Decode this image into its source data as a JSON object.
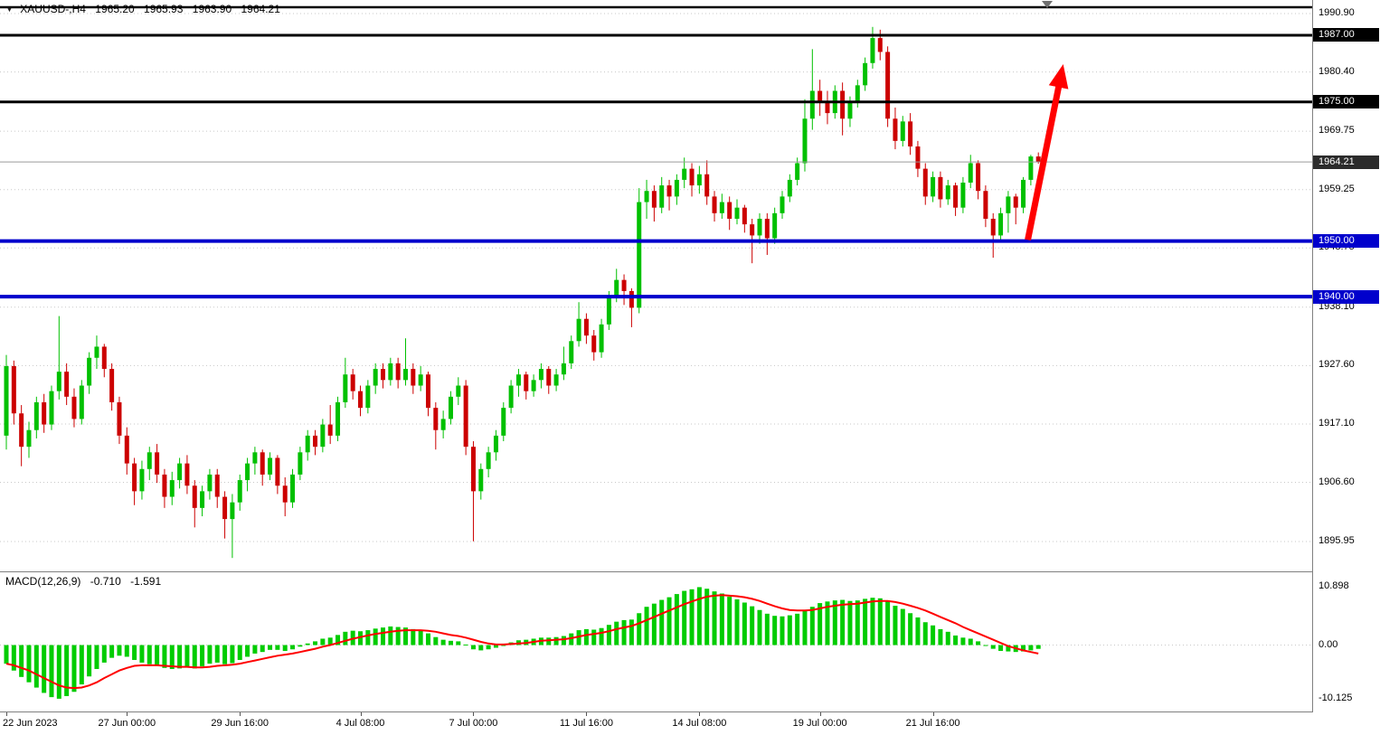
{
  "header": {
    "symbol_period": "XAUUSD-,H4",
    "open": "1965.20",
    "high": "1965.93",
    "low": "1963.90",
    "close": "1964.21"
  },
  "macd_header": {
    "label": "MACD(12,26,9)",
    "value_main": "-0.710",
    "value_signal": "-1.591"
  },
  "colors": {
    "background": "#FFFFFF",
    "text": "#000000",
    "bull": "#00C000",
    "bear": "#CC0000",
    "macd_hist": "#00CC00",
    "macd_signal": "#FF0000",
    "grid": "#C8C8C8",
    "frame": "#808080",
    "arrow": "#FF0000"
  },
  "chart_data": {
    "type": "candlestick",
    "symbol": "XAUUSD-",
    "timeframe": "H4",
    "price_range": [
      1890.43,
      1993.34
    ],
    "price_ticks": [
      "1990.90",
      "1980.40",
      "1969.75",
      "1959.25",
      "1948.75",
      "1938.10",
      "1927.60",
      "1917.10",
      "1906.60",
      "1895.95"
    ],
    "levels": [
      {
        "price": "1987.00",
        "color": "#000000",
        "width": 3
      },
      {
        "price": "1975.00",
        "color": "#000000",
        "width": 3
      },
      {
        "price": "1950.00",
        "color": "#0000CC",
        "width": 4
      },
      {
        "price": "1940.00",
        "color": "#0000CC",
        "width": 4
      }
    ],
    "current_price": {
      "price": "1964.21",
      "line_color": "#9A9A9A",
      "badge_bg": "#2B2B2B"
    },
    "arrow": {
      "from": {
        "index": 135.6,
        "price": 1950.2
      },
      "to": {
        "index": 140.3,
        "price": 1981.8
      },
      "color": "#FF0000"
    },
    "time_ticks": [
      {
        "index": 0,
        "label": "22 Jun 2023"
      },
      {
        "index": 16,
        "label": "27 Jun 00:00"
      },
      {
        "index": 31,
        "label": "29 Jun 16:00"
      },
      {
        "index": 47,
        "label": "4 Jul 08:00"
      },
      {
        "index": 62,
        "label": "7 Jul 00:00"
      },
      {
        "index": 77,
        "label": "11 Jul 16:00"
      },
      {
        "index": 92,
        "label": "14 Jul 08:00"
      },
      {
        "index": 108,
        "label": "19 Jul 00:00"
      },
      {
        "index": 123,
        "label": "21 Jul 16:00"
      }
    ],
    "ohlc_format": [
      "open",
      "high",
      "low",
      "close"
    ],
    "candles": [
      [
        1915.0,
        1929.5,
        1912.5,
        1927.5
      ],
      [
        1927.5,
        1928.5,
        1917.0,
        1919.0
      ],
      [
        1919.0,
        1920.5,
        1909.5,
        1913.0
      ],
      [
        1913.0,
        1917.5,
        1911.0,
        1916.0
      ],
      [
        1916.0,
        1922.0,
        1914.5,
        1921.0
      ],
      [
        1921.0,
        1922.5,
        1915.5,
        1917.0
      ],
      [
        1917.0,
        1924.0,
        1916.0,
        1923.0
      ],
      [
        1923.0,
        1936.5,
        1921.5,
        1926.5
      ],
      [
        1926.5,
        1928.0,
        1920.5,
        1922.0
      ],
      [
        1922.0,
        1923.5,
        1916.5,
        1918.0
      ],
      [
        1918.0,
        1925.0,
        1917.0,
        1924.0
      ],
      [
        1924.0,
        1930.0,
        1922.5,
        1929.0
      ],
      [
        1929.0,
        1933.0,
        1927.0,
        1931.0
      ],
      [
        1931.0,
        1931.5,
        1925.5,
        1927.0
      ],
      [
        1927.0,
        1928.0,
        1919.5,
        1921.0
      ],
      [
        1921.0,
        1922.0,
        1913.5,
        1915.0
      ],
      [
        1915.0,
        1916.5,
        1908.0,
        1910.0
      ],
      [
        1910.0,
        1911.0,
        1902.5,
        1905.0
      ],
      [
        1905.0,
        1910.5,
        1903.5,
        1909.0
      ],
      [
        1909.0,
        1913.0,
        1907.0,
        1912.0
      ],
      [
        1912.0,
        1913.5,
        1906.5,
        1908.0
      ],
      [
        1908.0,
        1909.0,
        1902.0,
        1904.0
      ],
      [
        1904.0,
        1908.5,
        1902.5,
        1907.0
      ],
      [
        1907.0,
        1911.0,
        1905.5,
        1910.0
      ],
      [
        1910.0,
        1911.5,
        1904.5,
        1906.0
      ],
      [
        1906.0,
        1907.0,
        1898.5,
        1902.0
      ],
      [
        1902.0,
        1906.0,
        1900.5,
        1905.0
      ],
      [
        1905.0,
        1909.0,
        1903.5,
        1908.0
      ],
      [
        1908.0,
        1909.0,
        1902.0,
        1904.0
      ],
      [
        1904.0,
        1905.0,
        1896.5,
        1900.0
      ],
      [
        1900.0,
        1904.5,
        1893.0,
        1903.0
      ],
      [
        1903.0,
        1908.0,
        1901.5,
        1907.0
      ],
      [
        1907.0,
        1911.0,
        1905.0,
        1910.0
      ],
      [
        1910.0,
        1913.0,
        1908.0,
        1912.0
      ],
      [
        1912.0,
        1912.5,
        1906.0,
        1908.0
      ],
      [
        1908.0,
        1912.0,
        1907.0,
        1911.0
      ],
      [
        1911.0,
        1911.5,
        1904.5,
        1906.0
      ],
      [
        1906.0,
        1907.5,
        1900.5,
        1903.0
      ],
      [
        1903.0,
        1909.0,
        1902.0,
        1908.0
      ],
      [
        1908.0,
        1913.0,
        1907.0,
        1912.0
      ],
      [
        1912.0,
        1916.0,
        1910.5,
        1915.0
      ],
      [
        1915.0,
        1916.0,
        1911.5,
        1913.0
      ],
      [
        1913.0,
        1918.0,
        1912.0,
        1917.0
      ],
      [
        1917.0,
        1920.5,
        1913.5,
        1915.0
      ],
      [
        1915.0,
        1922.0,
        1914.0,
        1921.0
      ],
      [
        1921.0,
        1929.0,
        1920.0,
        1926.0
      ],
      [
        1926.0,
        1927.0,
        1921.5,
        1923.0
      ],
      [
        1923.0,
        1924.0,
        1918.5,
        1920.0
      ],
      [
        1920.0,
        1925.0,
        1919.0,
        1924.0
      ],
      [
        1924.0,
        1928.0,
        1922.5,
        1927.0
      ],
      [
        1927.0,
        1928.0,
        1923.5,
        1925.0
      ],
      [
        1925.0,
        1929.0,
        1924.0,
        1928.0
      ],
      [
        1928.0,
        1929.0,
        1923.5,
        1925.0
      ],
      [
        1925.0,
        1932.5,
        1924.0,
        1927.0
      ],
      [
        1927.0,
        1928.0,
        1922.5,
        1924.0
      ],
      [
        1924.0,
        1927.5,
        1923.0,
        1926.0
      ],
      [
        1926.0,
        1926.5,
        1918.5,
        1920.0
      ],
      [
        1920.0,
        1921.0,
        1912.5,
        1916.0
      ],
      [
        1916.0,
        1919.5,
        1914.5,
        1918.0
      ],
      [
        1918.0,
        1923.0,
        1917.0,
        1922.0
      ],
      [
        1922.0,
        1925.5,
        1920.5,
        1924.0
      ],
      [
        1924.0,
        1925.0,
        1911.5,
        1913.0
      ],
      [
        1913.0,
        1914.0,
        1896.0,
        1905.0
      ],
      [
        1905.0,
        1910.0,
        1903.5,
        1909.0
      ],
      [
        1909.0,
        1913.0,
        1907.5,
        1912.0
      ],
      [
        1912.0,
        1916.0,
        1910.5,
        1915.0
      ],
      [
        1915.0,
        1921.0,
        1914.0,
        1920.0
      ],
      [
        1920.0,
        1925.0,
        1919.0,
        1924.0
      ],
      [
        1924.0,
        1927.0,
        1922.0,
        1926.0
      ],
      [
        1926.0,
        1926.5,
        1921.5,
        1923.0
      ],
      [
        1923.0,
        1926.0,
        1922.0,
        1925.0
      ],
      [
        1925.0,
        1928.0,
        1923.5,
        1927.0
      ],
      [
        1927.0,
        1927.5,
        1922.5,
        1924.0
      ],
      [
        1924.0,
        1927.0,
        1923.0,
        1926.0
      ],
      [
        1926.0,
        1931.0,
        1925.0,
        1928.0
      ],
      [
        1928.0,
        1933.0,
        1927.0,
        1932.0
      ],
      [
        1932.0,
        1939.0,
        1931.0,
        1936.0
      ],
      [
        1936.0,
        1937.0,
        1931.5,
        1933.0
      ],
      [
        1933.0,
        1934.0,
        1928.5,
        1930.0
      ],
      [
        1930.0,
        1936.0,
        1929.0,
        1935.0
      ],
      [
        1935.0,
        1941.0,
        1934.0,
        1940.0
      ],
      [
        1940.0,
        1945.0,
        1939.0,
        1943.0
      ],
      [
        1943.0,
        1944.0,
        1938.5,
        1941.0
      ],
      [
        1941.0,
        1941.5,
        1934.5,
        1938.0
      ],
      [
        1938.0,
        1959.5,
        1937.0,
        1957.0
      ],
      [
        1957.0,
        1961.0,
        1954.0,
        1959.0
      ],
      [
        1959.0,
        1960.0,
        1953.5,
        1956.0
      ],
      [
        1956.0,
        1961.5,
        1955.0,
        1960.0
      ],
      [
        1960.0,
        1961.0,
        1955.5,
        1958.0
      ],
      [
        1958.0,
        1962.0,
        1956.5,
        1961.0
      ],
      [
        1961.0,
        1965.0,
        1959.5,
        1963.0
      ],
      [
        1963.0,
        1964.0,
        1958.0,
        1960.0
      ],
      [
        1960.0,
        1963.5,
        1958.5,
        1962.0
      ],
      [
        1962.0,
        1964.5,
        1956.5,
        1958.0
      ],
      [
        1958.0,
        1959.0,
        1953.5,
        1955.0
      ],
      [
        1955.0,
        1958.5,
        1954.0,
        1957.0
      ],
      [
        1957.0,
        1958.0,
        1952.0,
        1954.0
      ],
      [
        1954.0,
        1957.5,
        1953.0,
        1956.0
      ],
      [
        1956.0,
        1956.5,
        1951.5,
        1953.0
      ],
      [
        1953.0,
        1954.0,
        1946.0,
        1951.0
      ],
      [
        1951.0,
        1955.0,
        1949.5,
        1954.0
      ],
      [
        1954.0,
        1955.0,
        1947.5,
        1950.5
      ],
      [
        1950.5,
        1956.0,
        1949.5,
        1955.0
      ],
      [
        1955.0,
        1959.0,
        1954.0,
        1958.0
      ],
      [
        1958.0,
        1962.0,
        1957.0,
        1961.0
      ],
      [
        1961.0,
        1965.0,
        1960.0,
        1964.0
      ],
      [
        1964.0,
        1975.5,
        1962.5,
        1972.0
      ],
      [
        1972.0,
        1984.5,
        1970.0,
        1977.0
      ],
      [
        1977.0,
        1979.0,
        1972.5,
        1975.0
      ],
      [
        1975.0,
        1977.0,
        1971.0,
        1973.0
      ],
      [
        1973.0,
        1978.0,
        1972.0,
        1977.0
      ],
      [
        1977.0,
        1978.5,
        1969.0,
        1972.0
      ],
      [
        1972.0,
        1976.0,
        1970.5,
        1975.0
      ],
      [
        1975.0,
        1979.0,
        1974.0,
        1978.0
      ],
      [
        1978.0,
        1983.0,
        1977.0,
        1982.0
      ],
      [
        1982.0,
        1988.5,
        1981.0,
        1986.5
      ],
      [
        1986.5,
        1988.0,
        1982.5,
        1984.0
      ],
      [
        1984.0,
        1985.0,
        1970.5,
        1972.0
      ],
      [
        1972.0,
        1974.0,
        1966.5,
        1968.0
      ],
      [
        1968.0,
        1972.5,
        1967.0,
        1971.5
      ],
      [
        1971.5,
        1973.0,
        1965.5,
        1967.0
      ],
      [
        1967.0,
        1968.0,
        1961.5,
        1963.0
      ],
      [
        1963.0,
        1964.0,
        1956.5,
        1958.0
      ],
      [
        1958.0,
        1962.5,
        1957.0,
        1961.5
      ],
      [
        1961.5,
        1962.5,
        1956.0,
        1957.5
      ],
      [
        1957.5,
        1961.0,
        1956.5,
        1960.0
      ],
      [
        1960.0,
        1960.5,
        1954.5,
        1956.0
      ],
      [
        1956.0,
        1961.5,
        1955.0,
        1960.5
      ],
      [
        1960.5,
        1965.5,
        1959.5,
        1964.0
      ],
      [
        1964.0,
        1964.5,
        1957.5,
        1959.0
      ],
      [
        1959.0,
        1960.0,
        1952.5,
        1954.0
      ],
      [
        1954.0,
        1955.0,
        1947.0,
        1951.0
      ],
      [
        1951.0,
        1956.0,
        1950.0,
        1955.0
      ],
      [
        1955.0,
        1959.0,
        1951.5,
        1958.0
      ],
      [
        1958.0,
        1958.5,
        1953.0,
        1956.0
      ],
      [
        1956.0,
        1961.5,
        1955.0,
        1961.0
      ],
      [
        1961.0,
        1965.5,
        1960.0,
        1965.2
      ],
      [
        1965.2,
        1965.93,
        1963.9,
        1964.21
      ]
    ],
    "macd": {
      "params": [
        12,
        26,
        9
      ],
      "range": [
        -12.5,
        13.7
      ],
      "axis_labels": [
        "10.898",
        "0.00",
        "-10.125"
      ],
      "histogram": [
        -3.5,
        -4.8,
        -6.0,
        -7.0,
        -8.0,
        -9.0,
        -9.8,
        -10.1,
        -9.6,
        -8.8,
        -7.4,
        -5.9,
        -4.5,
        -3.3,
        -2.4,
        -2.0,
        -2.2,
        -2.8,
        -3.3,
        -3.6,
        -3.9,
        -4.3,
        -4.5,
        -4.4,
        -4.2,
        -4.4,
        -4.0,
        -3.5,
        -3.3,
        -3.6,
        -3.4,
        -2.8,
        -2.2,
        -1.6,
        -1.3,
        -0.9,
        -0.9,
        -1.1,
        -0.8,
        -0.3,
        0.3,
        0.7,
        1.2,
        1.4,
        1.9,
        2.5,
        2.7,
        2.6,
        2.8,
        3.1,
        3.3,
        3.5,
        3.4,
        3.3,
        3.0,
        2.8,
        2.2,
        1.5,
        1.0,
        0.8,
        0.7,
        0.1,
        -0.8,
        -1.0,
        -0.8,
        -0.5,
        0.0,
        0.5,
        0.9,
        1.0,
        1.2,
        1.4,
        1.4,
        1.5,
        1.7,
        2.2,
        2.8,
        3.0,
        2.9,
        3.2,
        3.8,
        4.4,
        4.7,
        4.8,
        6.0,
        7.2,
        7.8,
        8.5,
        9.0,
        9.6,
        10.2,
        10.5,
        10.9,
        10.6,
        10.1,
        9.7,
        9.1,
        8.6,
        8.0,
        7.3,
        6.6,
        5.9,
        5.5,
        5.4,
        5.6,
        5.9,
        6.5,
        7.2,
        7.9,
        8.2,
        8.4,
        8.5,
        8.3,
        8.4,
        8.7,
        8.9,
        8.8,
        8.2,
        7.4,
        6.8,
        6.0,
        5.2,
        4.3,
        3.7,
        3.0,
        2.5,
        1.8,
        1.4,
        1.2,
        0.7,
        0.0,
        -0.7,
        -1.1,
        -1.2,
        -1.3,
        -1.2,
        -1.0,
        -0.71
      ],
      "signal": [
        -3.5,
        -3.8,
        -4.3,
        -4.8,
        -5.5,
        -6.2,
        -6.9,
        -7.6,
        -8.0,
        -8.1,
        -8.0,
        -7.6,
        -7.0,
        -6.2,
        -5.5,
        -4.8,
        -4.3,
        -3.9,
        -3.8,
        -3.8,
        -3.8,
        -3.9,
        -4.0,
        -4.1,
        -4.1,
        -4.2,
        -4.2,
        -4.1,
        -3.9,
        -3.8,
        -3.7,
        -3.5,
        -3.2,
        -2.9,
        -2.6,
        -2.3,
        -2.0,
        -1.8,
        -1.6,
        -1.3,
        -1.0,
        -0.7,
        -0.3,
        0.0,
        0.4,
        0.8,
        1.2,
        1.5,
        1.8,
        2.1,
        2.3,
        2.5,
        2.7,
        2.8,
        2.8,
        2.8,
        2.7,
        2.5,
        2.2,
        1.9,
        1.7,
        1.4,
        1.0,
        0.6,
        0.3,
        0.1,
        0.1,
        0.2,
        0.3,
        0.4,
        0.6,
        0.8,
        0.9,
        1.0,
        1.1,
        1.3,
        1.6,
        1.9,
        2.1,
        2.3,
        2.6,
        3.0,
        3.3,
        3.6,
        4.1,
        4.7,
        5.3,
        5.9,
        6.5,
        7.1,
        7.7,
        8.2,
        8.7,
        9.1,
        9.3,
        9.4,
        9.3,
        9.2,
        9.0,
        8.7,
        8.3,
        7.8,
        7.3,
        6.9,
        6.6,
        6.5,
        6.5,
        6.6,
        6.9,
        7.2,
        7.4,
        7.6,
        7.7,
        7.8,
        8.0,
        8.2,
        8.3,
        8.3,
        8.1,
        7.8,
        7.4,
        7.0,
        6.5,
        5.9,
        5.3,
        4.7,
        4.1,
        3.4,
        2.8,
        2.2,
        1.6,
        1.0,
        0.4,
        -0.2,
        -0.6,
        -1.0,
        -1.3,
        -1.591
      ]
    }
  }
}
